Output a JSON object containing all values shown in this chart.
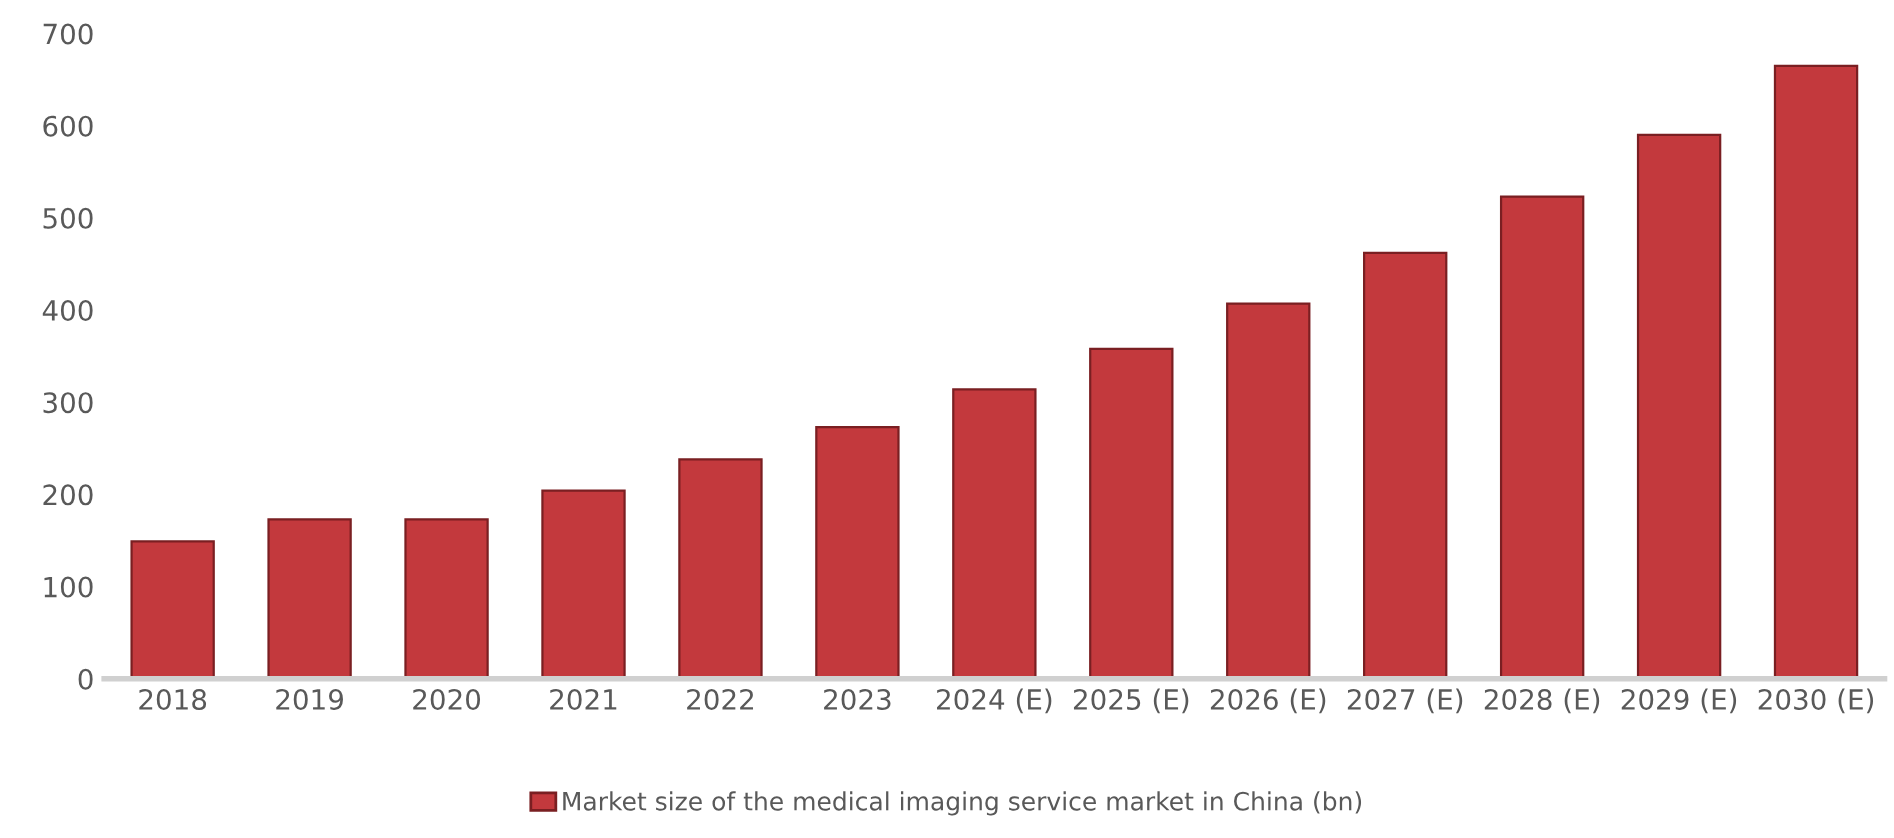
{
  "chart_data": {
    "type": "bar",
    "categories": [
      "2018",
      "2019",
      "2020",
      "2021",
      "2022",
      "2023",
      "2024 (E)",
      "2025 (E)",
      "2026 (E)",
      "2027 (E)",
      "2028 (E)",
      "2029 (E)",
      "2030 (E)"
    ],
    "series": [
      {
        "name": "Market size of the medical imaging service market in China (bn)",
        "color": "#c3393d",
        "values": [
          149,
          173,
          173,
          204,
          238,
          273,
          314,
          358,
          407,
          462,
          523,
          590,
          665
        ]
      }
    ],
    "ylim": [
      0,
      700
    ],
    "yticks": [
      0,
      100,
      200,
      300,
      400,
      500,
      600,
      700
    ],
    "grid": false,
    "legend": "bottom"
  }
}
